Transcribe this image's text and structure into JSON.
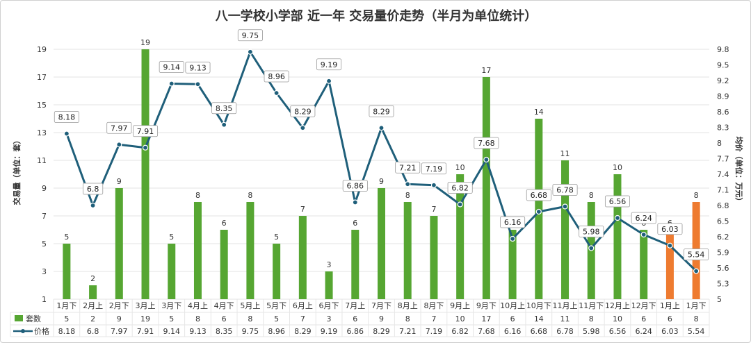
{
  "chart_data": {
    "type": "bar+line",
    "title": "八一学校小学部 近一年 交易量价走势（半月为单位统计）",
    "ylabel_left": "交易量（单位：套）",
    "ylabel_right": "均价（单位：万元）",
    "categories": [
      "1月下",
      "2月上",
      "2月下",
      "3月上",
      "3月下",
      "4月上",
      "4月下",
      "5月上",
      "5月下",
      "6月上",
      "6月下",
      "7月上",
      "7月下",
      "8月上",
      "8月下",
      "9月上",
      "9月下",
      "10月上",
      "10月下",
      "11月上",
      "11月下",
      "12月上",
      "12月下",
      "1月上",
      "1月下"
    ],
    "series": [
      {
        "name": "套数",
        "type": "bar",
        "axis": "left",
        "values": [
          5,
          2,
          9,
          19,
          5,
          8,
          6,
          8,
          5,
          7,
          3,
          6,
          9,
          8,
          7,
          10,
          17,
          6,
          14,
          11,
          8,
          10,
          6,
          6,
          8
        ],
        "value_labels": [
          "5",
          "2",
          "9",
          "19",
          "5",
          "8",
          "6",
          "8",
          "5",
          "7",
          "3",
          "6",
          "9",
          "8",
          "7",
          "10",
          "17",
          "6",
          "14",
          "11",
          "8",
          "10",
          "6",
          "6",
          "8"
        ],
        "highlight_indices": [
          23,
          24
        ]
      },
      {
        "name": "价格",
        "type": "line",
        "axis": "right",
        "values": [
          8.18,
          6.8,
          7.97,
          7.91,
          9.14,
          9.13,
          8.35,
          9.75,
          8.96,
          8.29,
          9.19,
          6.86,
          8.29,
          7.21,
          7.19,
          6.82,
          7.68,
          6.16,
          6.68,
          6.78,
          5.98,
          6.56,
          6.24,
          6.03,
          5.54
        ],
        "value_labels": [
          "8.18",
          "6.8",
          "7.97",
          "7.91",
          "9.14",
          "9.13",
          "8.35",
          "9.75",
          "8.96",
          "8.29",
          "9.19",
          "6.86",
          "8.29",
          "7.21",
          "7.19",
          "6.82",
          "7.68",
          "6.16",
          "6.68",
          "6.78",
          "5.98",
          "6.56",
          "6.24",
          "6.03",
          "5.54"
        ]
      }
    ],
    "left_axis": {
      "range": [
        1,
        19
      ],
      "ticks": [
        "1",
        "3",
        "5",
        "7",
        "9",
        "11",
        "13",
        "15",
        "17",
        "19"
      ]
    },
    "right_axis": {
      "range": [
        5,
        9.8
      ],
      "ticks": [
        "5",
        "5.3",
        "5.6",
        "5.9",
        "6.2",
        "6.5",
        "6.8",
        "7.1",
        "7.4",
        "7.7",
        "8",
        "8.3",
        "8.6",
        "8.9",
        "9.2",
        "9.5",
        "9.8"
      ]
    },
    "grid": true,
    "legend": "bottom data table"
  },
  "colors": {
    "bar": "#56a632",
    "bar_highlight": "#ee7b30",
    "line": "#1f5f7a",
    "grid": "#e3e3e3",
    "title": "#333333",
    "axis_text": "#333333"
  }
}
